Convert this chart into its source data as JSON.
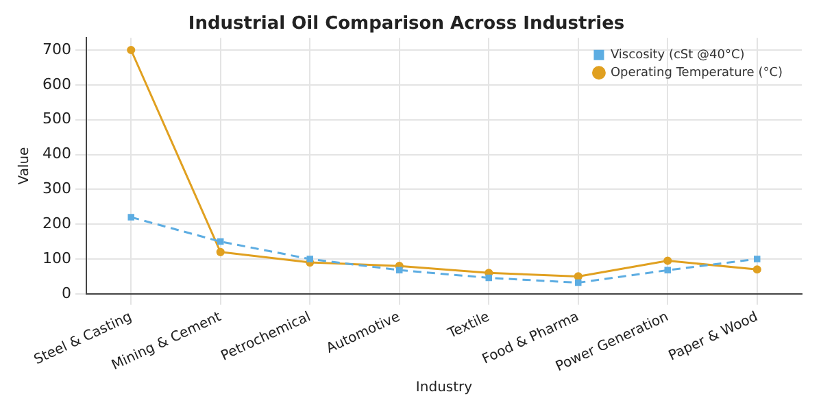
{
  "chart_data": {
    "type": "line",
    "title": "Industrial Oil Comparison Across Industries",
    "xlabel": "Industry",
    "ylabel": "Value",
    "categories": [
      "Steel & Casting",
      "Mining & Cement",
      "Petrochemical",
      "Automotive",
      "Textile",
      "Food & Pharma",
      "Power Generation",
      "Paper & Wood"
    ],
    "series": [
      {
        "name": "Operating Temperature (°C)",
        "color": "#e0a020",
        "values": [
          700,
          120,
          90,
          80,
          60,
          50,
          95,
          70
        ],
        "marker": "circle",
        "line_style": "solid"
      },
      {
        "name": "Viscosity (cSt @40°C)",
        "color": "#5dade2",
        "values": [
          220,
          150,
          100,
          68,
          46,
          32,
          68,
          100
        ],
        "marker": "square",
        "line_style": "dashed"
      }
    ],
    "ylim": [
      0,
      735
    ],
    "yticks": [
      0,
      100,
      200,
      300,
      400,
      500,
      600,
      700
    ],
    "grid": true,
    "legend": "top right"
  }
}
